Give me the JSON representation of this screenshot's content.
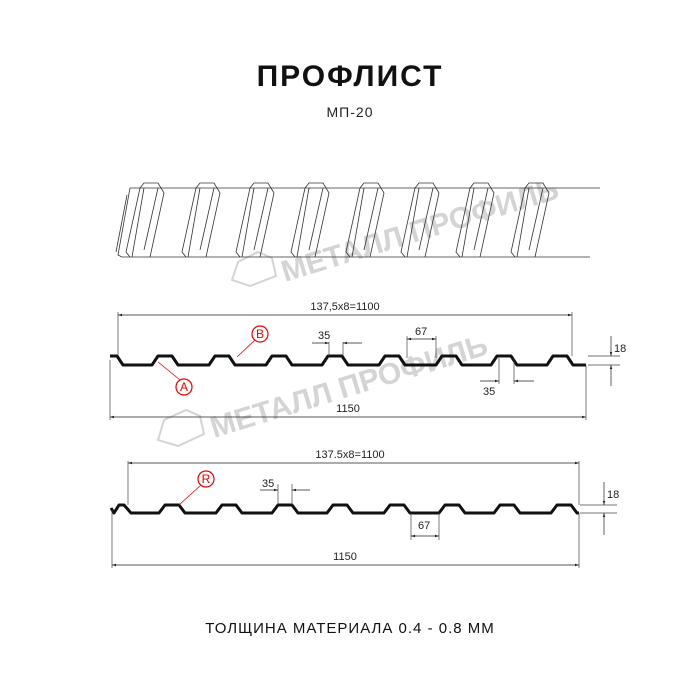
{
  "header": {
    "title": "ПРОФЛИСТ",
    "subtitle": "МП-20"
  },
  "watermark": "МЕТАЛЛ ПРОФИЛЬ",
  "profile_1": {
    "pitch_label": "137,5x8=1100",
    "total_label": "1150",
    "top_width": "35",
    "bottom_width": "35",
    "rib_gap": "67",
    "height": "18",
    "markers": [
      "B",
      "A"
    ]
  },
  "profile_2": {
    "pitch_label": "137.5x8=1100",
    "total_label": "1150",
    "top_width": "35",
    "rib_gap": "67",
    "height": "18",
    "markers": [
      "R"
    ]
  },
  "footer": {
    "thickness": "ТОЛЩИНА МАТЕРИАЛА 0.4 - 0.8 ММ"
  },
  "colors": {
    "line": "#111111",
    "marker": "#e00000",
    "watermark": "#d4d4d4"
  }
}
